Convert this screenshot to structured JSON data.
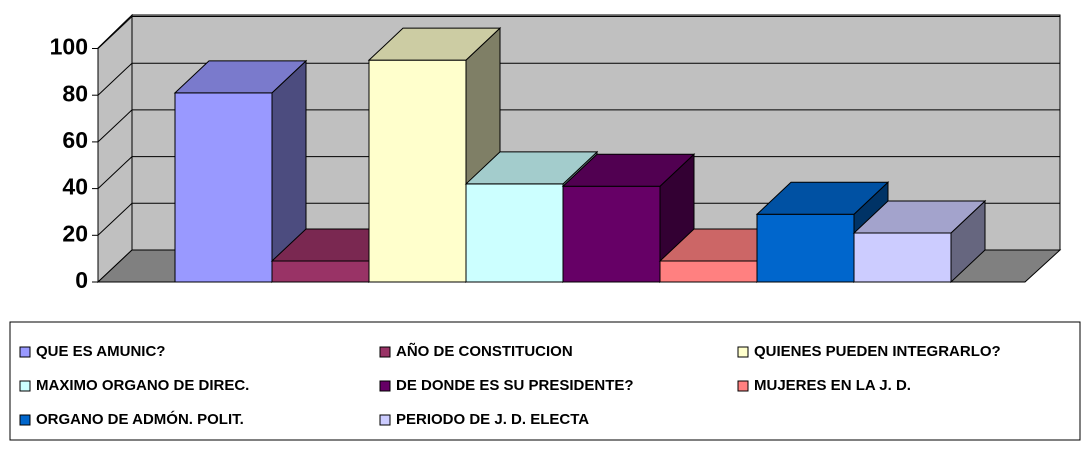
{
  "chart_data": {
    "type": "bar3d",
    "series": [
      {
        "name": "QUE ES AMUNIC?",
        "color": "#9999ff",
        "values": [
          81
        ]
      },
      {
        "name": "AÑO DE CONSTITUCION",
        "color": "#993366",
        "values": [
          9
        ]
      },
      {
        "name": "QUIENES PUEDEN INTEGRARLO?",
        "color": "#ffffcc",
        "values": [
          95
        ]
      },
      {
        "name": "MAXIMO ORGANO DE DIREC.",
        "color": "#ccffff",
        "values": [
          42
        ]
      },
      {
        "name": "DE DONDE ES SU PRESIDENTE?",
        "color": "#660066",
        "values": [
          41
        ]
      },
      {
        "name": "MUJERES EN LA J. D.",
        "color": "#ff8080",
        "values": [
          9
        ]
      },
      {
        "name": "ORGANO DE ADMÓN. POLIT.",
        "color": "#0066cc",
        "values": [
          29
        ]
      },
      {
        "name": "PERIODO DE J. D. ELECTA",
        "color": "#ccccff",
        "values": [
          21
        ]
      }
    ],
    "ylim": [
      0,
      100
    ],
    "yticks": [
      0,
      20,
      40,
      60,
      80,
      100
    ],
    "grid": true,
    "legend": "bottom"
  }
}
